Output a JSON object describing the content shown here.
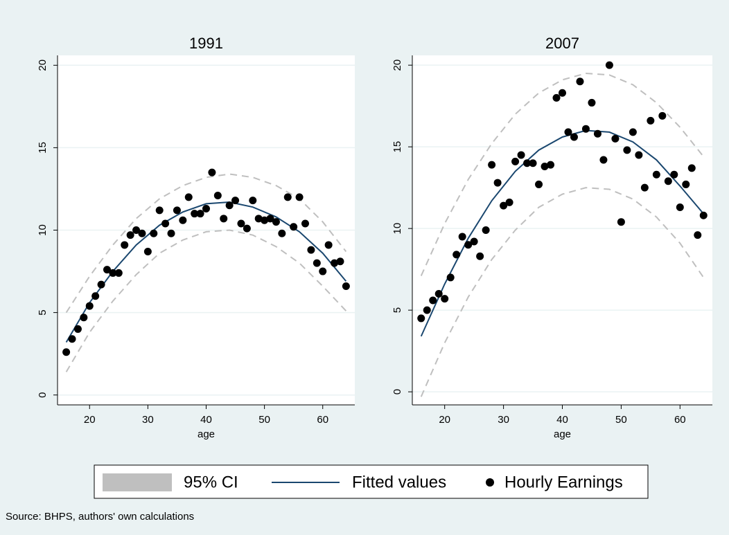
{
  "chart_data": [
    {
      "type": "scatter",
      "title": "1991",
      "xlabel": "age",
      "xlim": [
        14.5,
        65.5
      ],
      "ylim": [
        -0.6,
        20.6
      ],
      "xticks": [
        20,
        30,
        40,
        50,
        60
      ],
      "yticks": [
        0,
        5,
        10,
        15,
        20
      ],
      "grid": true,
      "series": [
        {
          "name": "95% CI",
          "type": "band",
          "color": "#bfbfbf",
          "x": [
            16,
            20,
            24,
            28,
            32,
            36,
            40,
            44,
            48,
            52,
            56,
            60,
            64
          ],
          "lower": [
            1.4,
            3.8,
            5.7,
            7.3,
            8.6,
            9.4,
            9.9,
            10.0,
            9.7,
            9.0,
            8.0,
            6.6,
            5.1
          ],
          "upper": [
            5.0,
            7.2,
            9.1,
            10.7,
            11.9,
            12.7,
            13.2,
            13.4,
            13.2,
            12.7,
            11.9,
            10.5,
            8.7
          ]
        },
        {
          "name": "Fitted values",
          "type": "line",
          "color": "#1a476f",
          "x": [
            16,
            20,
            24,
            28,
            32,
            36,
            40,
            44,
            48,
            52,
            56,
            60,
            64
          ],
          "values": [
            3.2,
            5.6,
            7.5,
            9.1,
            10.3,
            11.1,
            11.6,
            11.7,
            11.4,
            10.8,
            9.9,
            8.6,
            6.9
          ]
        },
        {
          "name": "Hourly Earnings",
          "type": "scatter",
          "color": "#000000",
          "x": [
            16,
            17,
            18,
            19,
            20,
            21,
            22,
            23,
            24,
            25,
            26,
            27,
            28,
            29,
            30,
            31,
            32,
            33,
            34,
            35,
            36,
            37,
            38,
            39,
            40,
            41,
            42,
            43,
            44,
            45,
            46,
            47,
            48,
            49,
            50,
            51,
            52,
            53,
            54,
            55,
            56,
            57,
            58,
            59,
            60,
            61,
            62,
            63,
            64
          ],
          "values": [
            2.6,
            3.4,
            4.0,
            4.7,
            5.4,
            6.0,
            6.7,
            7.6,
            7.4,
            7.4,
            9.1,
            9.7,
            10.0,
            9.8,
            8.7,
            9.8,
            11.2,
            10.4,
            9.8,
            11.2,
            10.6,
            12.0,
            11.0,
            11.0,
            11.3,
            13.5,
            12.1,
            10.7,
            11.5,
            11.8,
            10.4,
            10.1,
            11.8,
            10.7,
            10.6,
            10.7,
            10.5,
            9.8,
            12.0,
            10.2,
            12.0,
            10.4,
            8.8,
            8.0,
            7.5,
            9.1,
            8.0,
            8.1,
            6.6
          ]
        }
      ]
    },
    {
      "type": "scatter",
      "title": "2007",
      "xlabel": "age",
      "xlim": [
        14.5,
        65.5
      ],
      "ylim": [
        -0.8,
        20.6
      ],
      "xticks": [
        20,
        30,
        40,
        50,
        60
      ],
      "yticks": [
        0,
        5,
        10,
        15,
        20
      ],
      "grid": true,
      "series": [
        {
          "type": "band",
          "color": "#bfbfbf",
          "x": [
            16,
            20,
            24,
            28,
            32,
            36,
            40,
            44,
            48,
            52,
            56,
            60,
            64
          ],
          "lower": [
            -0.3,
            3.0,
            5.8,
            8.1,
            9.9,
            11.3,
            12.1,
            12.5,
            12.4,
            11.8,
            10.7,
            9.1,
            7.0
          ],
          "upper": [
            7.1,
            10.3,
            13.0,
            15.2,
            17.0,
            18.3,
            19.1,
            19.5,
            19.4,
            18.8,
            17.7,
            16.2,
            14.4
          ]
        },
        {
          "type": "line",
          "color": "#1a476f",
          "x": [
            16,
            20,
            24,
            28,
            32,
            36,
            40,
            44,
            48,
            52,
            56,
            60,
            64
          ],
          "values": [
            3.4,
            6.6,
            9.4,
            11.7,
            13.5,
            14.8,
            15.6,
            16.0,
            15.9,
            15.3,
            14.2,
            12.6,
            10.9
          ]
        },
        {
          "type": "scatter",
          "color": "#000000",
          "x": [
            16,
            17,
            18,
            19,
            20,
            21,
            22,
            23,
            24,
            25,
            26,
            27,
            28,
            29,
            30,
            31,
            32,
            33,
            34,
            35,
            36,
            37,
            38,
            39,
            40,
            41,
            42,
            43,
            44,
            45,
            46,
            47,
            48,
            49,
            50,
            51,
            52,
            53,
            54,
            55,
            56,
            57,
            58,
            59,
            60,
            61,
            62,
            63,
            64
          ],
          "values": [
            4.5,
            5.0,
            5.6,
            6.0,
            5.7,
            7.0,
            8.4,
            9.5,
            9.0,
            9.2,
            8.3,
            9.9,
            13.9,
            12.8,
            11.4,
            11.6,
            14.1,
            14.5,
            14.0,
            14.0,
            12.7,
            13.8,
            13.9,
            18.0,
            18.3,
            15.9,
            15.6,
            19.0,
            16.1,
            17.7,
            15.8,
            14.2,
            20.0,
            15.5,
            10.4,
            14.8,
            15.9,
            14.5,
            12.5,
            16.6,
            13.3,
            16.9,
            12.9,
            13.3,
            11.3,
            12.7,
            13.7,
            9.6,
            10.8
          ]
        }
      ]
    }
  ],
  "note": "Source: BHPS, authors' own calculations"
}
